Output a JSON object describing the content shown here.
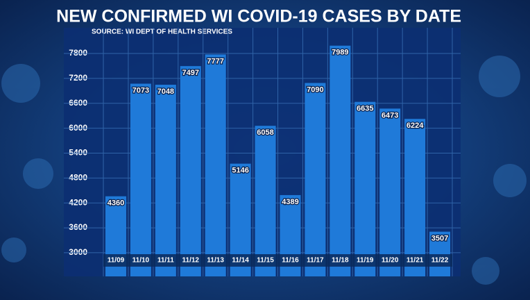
{
  "chart_data": {
    "type": "bar",
    "title": "NEW CONFIRMED WI COVID-19 CASES BY DATE",
    "subtitle": "SOURCE: WI DEPT OF HEALTH SERVICES",
    "categories": [
      "11/09",
      "11/10",
      "11/11",
      "11/12",
      "11/13",
      "11/14",
      "11/15",
      "11/16",
      "11/17",
      "11/18",
      "11/19",
      "11/20",
      "11/21",
      "11/22"
    ],
    "values": [
      4360,
      7073,
      7048,
      7497,
      7777,
      5146,
      6058,
      4389,
      7090,
      7989,
      6635,
      6473,
      6224,
      3507
    ],
    "color": "#1f7ad9",
    "ylim": [
      2430,
      8420
    ],
    "yticks": [
      3000,
      3600,
      4200,
      4800,
      5400,
      6000,
      6600,
      7200,
      7800
    ],
    "grid": true
  }
}
